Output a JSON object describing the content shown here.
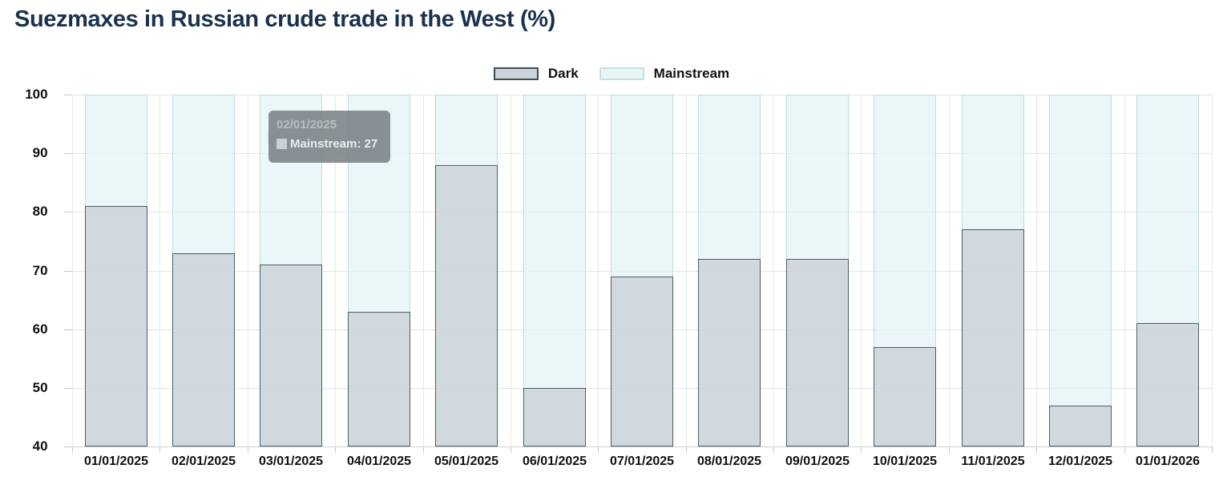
{
  "title": "Suezmaxes in Russian crude trade in the West (%)",
  "legend": [
    {
      "label": "Dark"
    },
    {
      "label": "Mainstream"
    }
  ],
  "tooltip": {
    "header": "02/01/2025",
    "line": "Mainstream: 27"
  },
  "chart_data": {
    "type": "bar",
    "stacked": true,
    "title": "Suezmaxes in Russian crude trade in the West (%)",
    "categories": [
      "01/01/2025",
      "02/01/2025",
      "03/01/2025",
      "04/01/2025",
      "05/01/2025",
      "06/01/2025",
      "07/01/2025",
      "08/01/2025",
      "09/01/2025",
      "10/01/2025",
      "11/01/2025",
      "12/01/2025",
      "01/01/2026"
    ],
    "series": [
      {
        "name": "Dark",
        "values": [
          81,
          73,
          71,
          63,
          88,
          50,
          69,
          72,
          72,
          57,
          77,
          47,
          61
        ],
        "fill": "#ccd4d9",
        "border": "#4e5d68"
      },
      {
        "name": "Mainstream",
        "values": [
          19,
          27,
          29,
          37,
          12,
          50,
          31,
          28,
          28,
          43,
          23,
          53,
          39
        ],
        "fill": "#eaf5f6",
        "border": "#bcdde0"
      }
    ],
    "xlabel": "",
    "ylabel": "",
    "ylim": [
      40,
      100
    ],
    "yticks": [
      40,
      50,
      60,
      70,
      80,
      90,
      100
    ],
    "grid": true,
    "legend_position": "top-center",
    "note": "stacked to 100%; Mainstream segment drawn from Dark value up to 100; tooltip shows Mainstream value for 02/01/2025"
  },
  "colors": {
    "title_text": "#1a3150",
    "axis_text": "#111111",
    "dark_fill": "#ccd4d9",
    "dark_border": "#4e5d68",
    "mainstream_fill": "#eaf5f6",
    "mainstream_border": "#bcdde0",
    "gridline": "#e4e4e4",
    "tooltip_bg": "#767e83"
  }
}
